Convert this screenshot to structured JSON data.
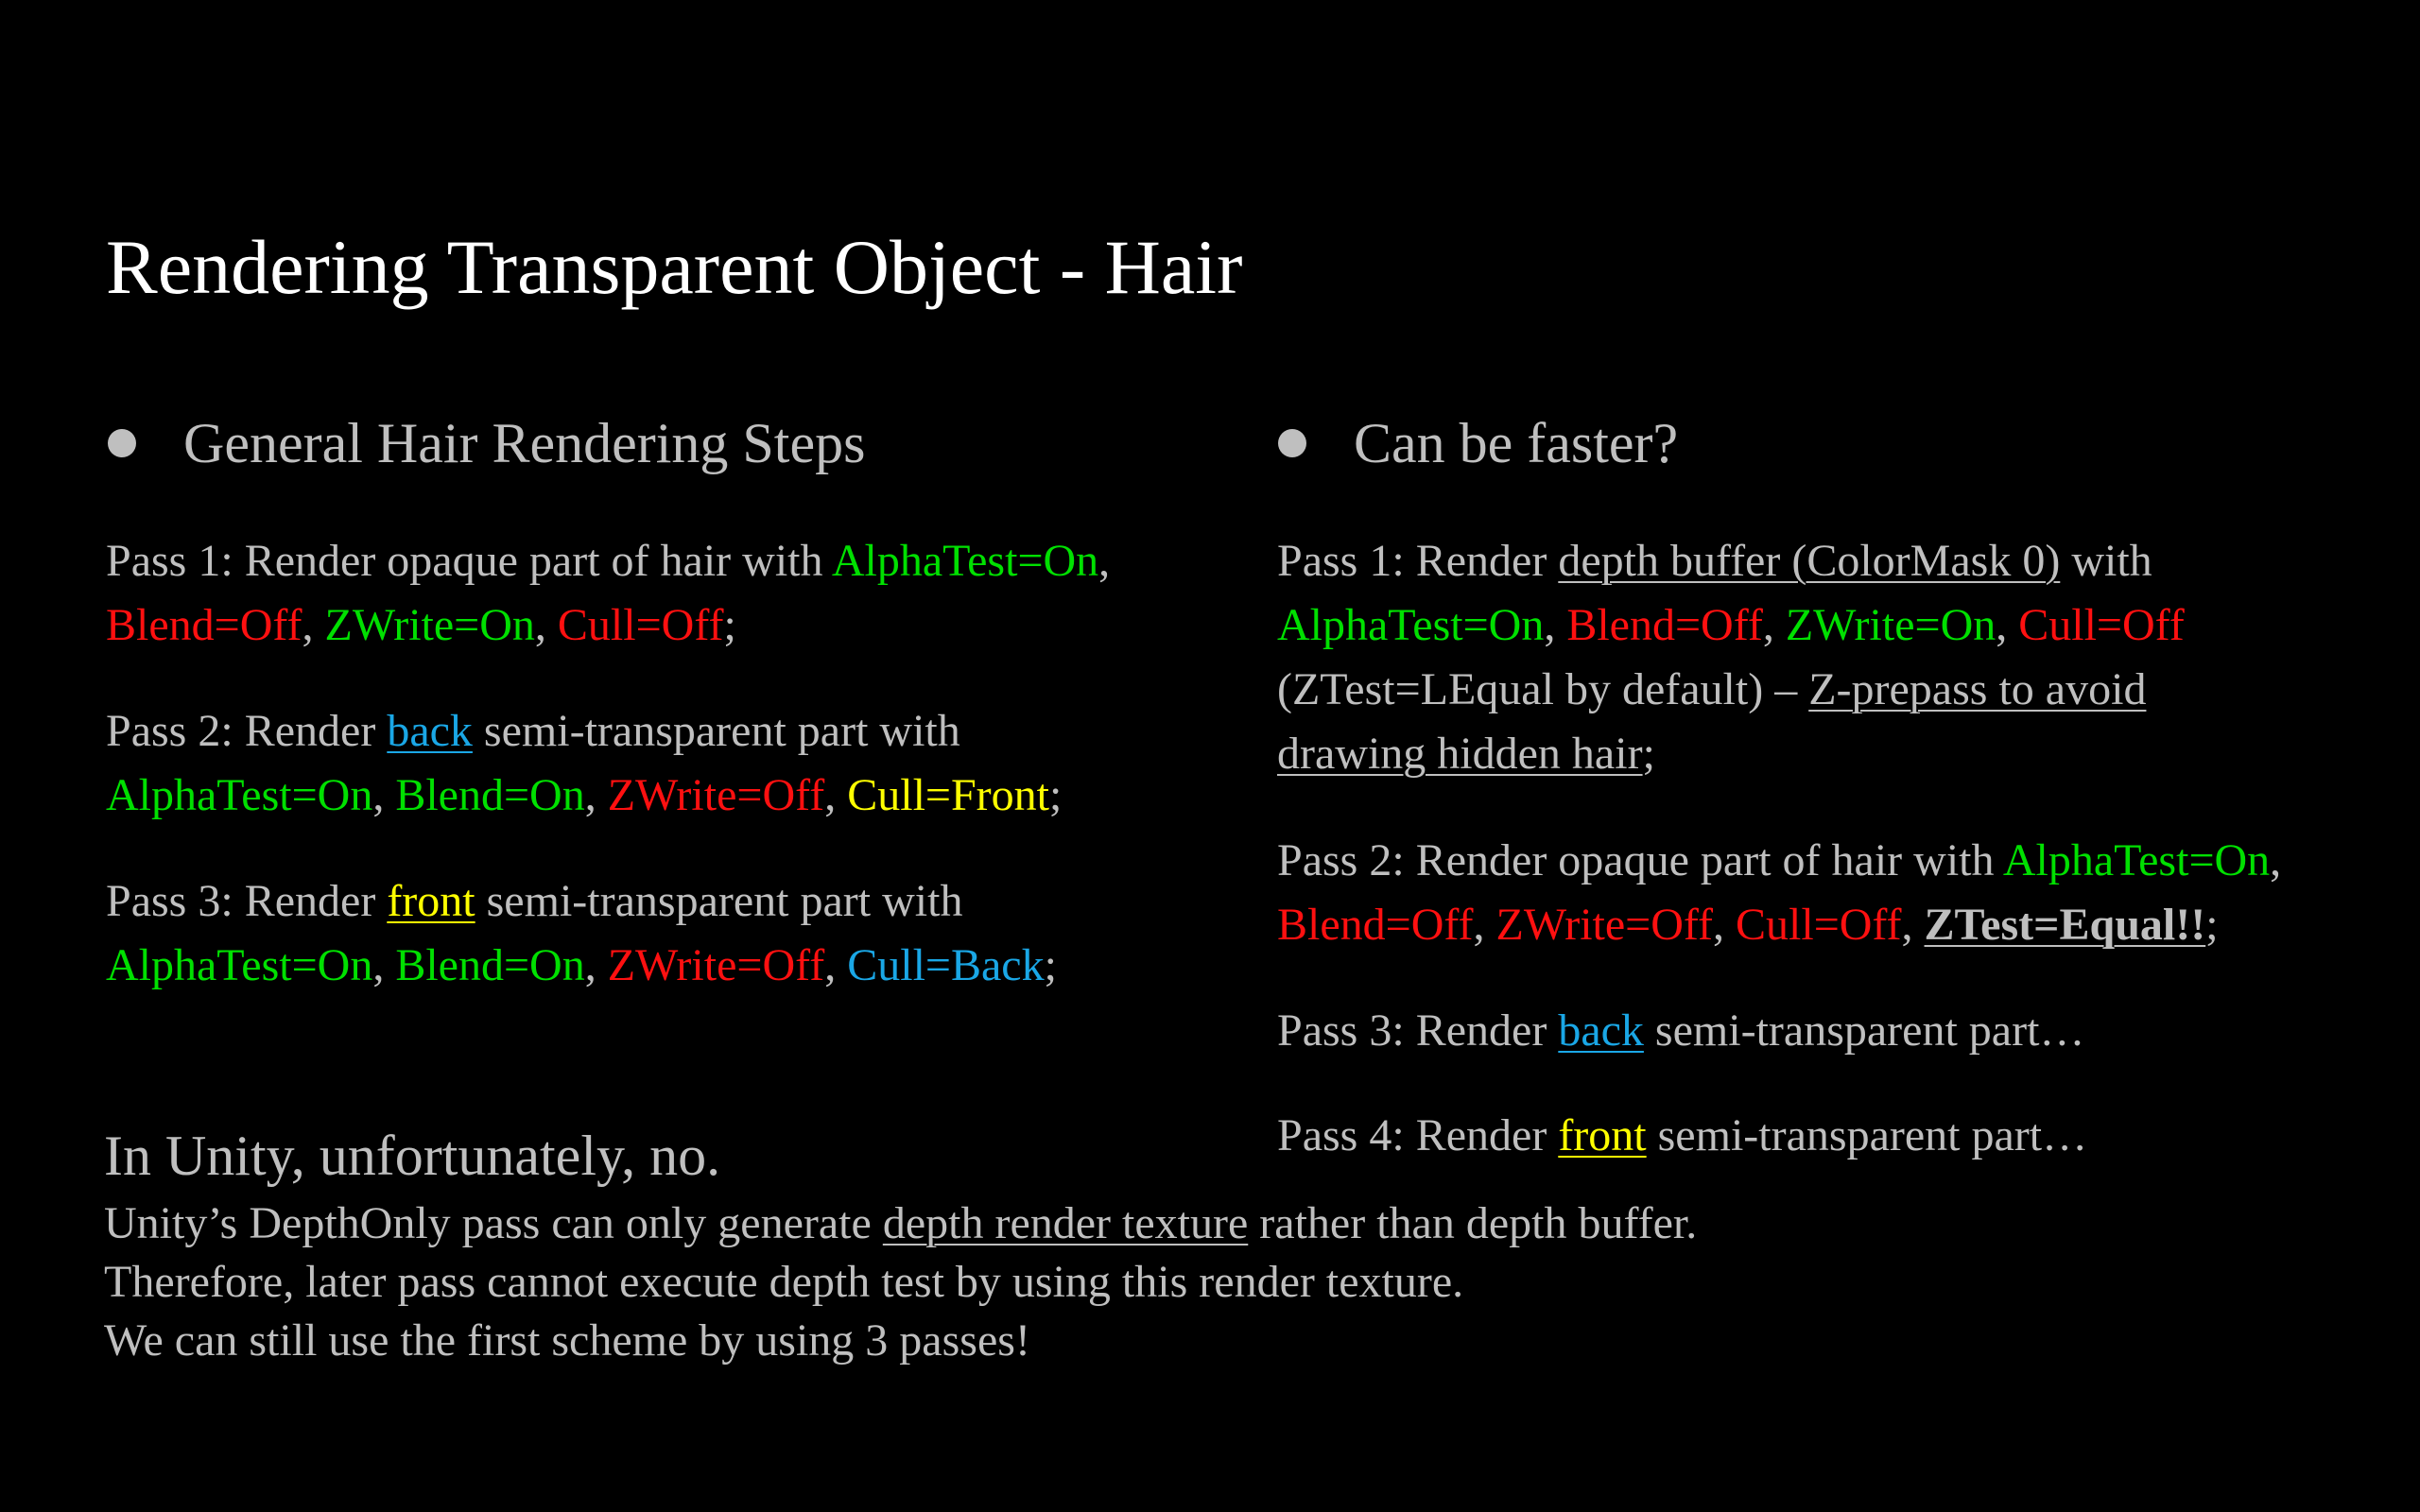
{
  "colors": {
    "background": "#000000",
    "title": "#ffffff",
    "body_text": "#bfbfbf",
    "green": "#00e000",
    "red": "#ff1010",
    "yellow": "#ffff00",
    "blue": "#1aa7e6"
  },
  "title": "Rendering Transparent Object - Hair",
  "left": {
    "heading": "General Hair Rendering Steps",
    "pass1": {
      "prefix": "Pass 1: Render opaque part of hair with ",
      "alphatest": "AlphaTest=On",
      "comma1": ",",
      "blend": "Blend=Off",
      "comma2": ", ",
      "zwrite": "ZWrite=On",
      "comma3": ", ",
      "cull": "Cull=Off",
      "end": ";"
    },
    "pass2": {
      "prefix": "Pass 2: Render ",
      "keyword": "back",
      "suffix": " semi-transparent part with",
      "alphatest": "AlphaTest=On",
      "comma1": ", ",
      "blend": "Blend=On",
      "comma2": ", ",
      "zwrite": "ZWrite=Off",
      "comma3": ", ",
      "cull": "Cull=Front",
      "end": ";"
    },
    "pass3": {
      "prefix": "Pass 3: Render ",
      "keyword": "front",
      "suffix": " semi-transparent part with",
      "alphatest": "AlphaTest=On",
      "comma1": ", ",
      "blend": "Blend=On",
      "comma2": ", ",
      "zwrite": "ZWrite=Off",
      "comma3": ", ",
      "cull": "Cull=Back",
      "end": ";"
    }
  },
  "right": {
    "heading": "Can be faster?",
    "pass1": {
      "prefix": "Pass 1: Render ",
      "depth": "depth buffer (ColorMask 0)",
      "with": " with",
      "alphatest": "AlphaTest=On",
      "comma1": ", ",
      "blend": "Blend=Off",
      "comma2": ", ",
      "zwrite": "ZWrite=On",
      "comma3": ", ",
      "cull": "Cull=Off",
      "ztest_note": "(ZTest=LEqual by default) – ",
      "zprepass1": "Z-prepass to avoid",
      "zprepass2": "drawing hidden hair",
      "end": ";"
    },
    "pass2": {
      "prefix": "Pass 2: Render opaque part of hair with ",
      "alphatest": "AlphaTest=On",
      "comma0": ",",
      "blend": "Blend=Off",
      "comma1": ", ",
      "zwrite": "ZWrite=Off",
      "comma2": ", ",
      "cull": "Cull=Off",
      "comma3": ", ",
      "ztest": "ZTest=Equal!!",
      "end": ";"
    },
    "pass3": {
      "prefix": "Pass 3: Render ",
      "keyword": "back",
      "suffix": " semi-transparent part…"
    },
    "pass4": {
      "prefix": "Pass 4: Render ",
      "keyword": "front",
      "suffix": " semi-transparent part…"
    }
  },
  "unity": {
    "heading": "In Unity, unfortunately, no.",
    "line1_prefix": "Unity’s DepthOnly pass can only generate ",
    "line1_link": "depth render texture",
    "line1_suffix": " rather than depth buffer.",
    "line2": "Therefore, later pass cannot execute depth test by using this render texture.",
    "line3": "We can still use the first scheme by using 3 passes!"
  }
}
